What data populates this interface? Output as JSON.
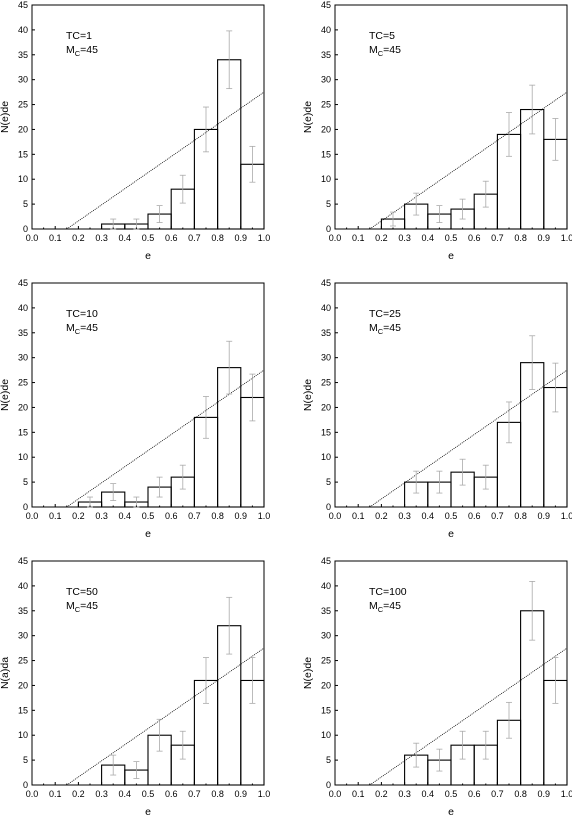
{
  "chart_data": [
    {
      "type": "bar",
      "x_bins": [
        [
          0.3,
          0.4
        ],
        [
          0.4,
          0.5
        ],
        [
          0.5,
          0.6
        ],
        [
          0.6,
          0.7
        ],
        [
          0.7,
          0.8
        ],
        [
          0.8,
          0.9
        ],
        [
          0.9,
          1.0
        ]
      ],
      "values": [
        1,
        1,
        3,
        8,
        20,
        34,
        13
      ],
      "errors": [
        1.0,
        1.0,
        1.7,
        2.8,
        4.5,
        5.8,
        3.6
      ],
      "fit_line": {
        "x": [
          0.15,
          1.0
        ],
        "y": [
          0,
          27.5
        ]
      },
      "annotation": {
        "line1": "TC=1",
        "prefix": "M",
        "sub": "C",
        "suffix": "=45"
      },
      "xlabel": "e",
      "ylabel": "N(e)de",
      "xlim": [
        0.0,
        1.0
      ],
      "ylim": [
        0,
        45
      ],
      "xticks": [
        "0.0",
        "0.1",
        "0.2",
        "0.3",
        "0.4",
        "0.5",
        "0.6",
        "0.7",
        "0.8",
        "0.9",
        "1.0"
      ],
      "yticks": [
        "0",
        "5",
        "10",
        "15",
        "20",
        "25",
        "30",
        "35",
        "40",
        "45"
      ],
      "grid": false
    },
    {
      "type": "bar",
      "x_bins": [
        [
          0.2,
          0.3
        ],
        [
          0.3,
          0.4
        ],
        [
          0.4,
          0.5
        ],
        [
          0.5,
          0.6
        ],
        [
          0.6,
          0.7
        ],
        [
          0.7,
          0.8
        ],
        [
          0.8,
          0.9
        ],
        [
          0.9,
          1.0
        ]
      ],
      "values": [
        2,
        5,
        3,
        4,
        7,
        19,
        24,
        18
      ],
      "errors": [
        1.4,
        2.2,
        1.7,
        2.0,
        2.6,
        4.4,
        4.9,
        4.2
      ],
      "fit_line": {
        "x": [
          0.15,
          1.0
        ],
        "y": [
          0,
          27.5
        ]
      },
      "annotation": {
        "line1": "TC=5",
        "prefix": "M",
        "sub": "C",
        "suffix": "=45"
      },
      "xlabel": "e",
      "ylabel": "N(e)de",
      "xlim": [
        0.0,
        1.0
      ],
      "ylim": [
        0,
        45
      ],
      "xticks": [
        "0.0",
        "0.1",
        "0.2",
        "0.3",
        "0.4",
        "0.5",
        "0.6",
        "0.7",
        "0.8",
        "0.9",
        "1.0"
      ],
      "yticks": [
        "0",
        "5",
        "10",
        "15",
        "20",
        "25",
        "30",
        "35",
        "40",
        "45"
      ],
      "grid": false
    },
    {
      "type": "bar",
      "x_bins": [
        [
          0.2,
          0.3
        ],
        [
          0.3,
          0.4
        ],
        [
          0.4,
          0.5
        ],
        [
          0.5,
          0.6
        ],
        [
          0.6,
          0.7
        ],
        [
          0.7,
          0.8
        ],
        [
          0.8,
          0.9
        ],
        [
          0.9,
          1.0
        ]
      ],
      "values": [
        1,
        3,
        1,
        4,
        6,
        18,
        28,
        22
      ],
      "errors": [
        1.0,
        1.7,
        1.0,
        2.0,
        2.4,
        4.2,
        5.3,
        4.7
      ],
      "fit_line": {
        "x": [
          0.15,
          1.0
        ],
        "y": [
          0,
          27.5
        ]
      },
      "annotation": {
        "line1": "TC=10",
        "prefix": "M",
        "sub": "C",
        "suffix": "=45"
      },
      "xlabel": "e",
      "ylabel": "N(e)de",
      "xlim": [
        0.0,
        1.0
      ],
      "ylim": [
        0,
        45
      ],
      "xticks": [
        "0.0",
        "0.1",
        "0.2",
        "0.3",
        "0.4",
        "0.5",
        "0.6",
        "0.7",
        "0.8",
        "0.9",
        "1.0"
      ],
      "yticks": [
        "0",
        "5",
        "10",
        "15",
        "20",
        "25",
        "30",
        "35",
        "40",
        "45"
      ],
      "grid": false
    },
    {
      "type": "bar",
      "x_bins": [
        [
          0.3,
          0.4
        ],
        [
          0.4,
          0.5
        ],
        [
          0.5,
          0.6
        ],
        [
          0.6,
          0.7
        ],
        [
          0.7,
          0.8
        ],
        [
          0.8,
          0.9
        ],
        [
          0.9,
          1.0
        ]
      ],
      "values": [
        5,
        5,
        7,
        6,
        17,
        29,
        24
      ],
      "errors": [
        2.2,
        2.2,
        2.6,
        2.4,
        4.1,
        5.4,
        4.9
      ],
      "fit_line": {
        "x": [
          0.15,
          1.0
        ],
        "y": [
          0,
          27.5
        ]
      },
      "annotation": {
        "line1": "TC=25",
        "prefix": "M",
        "sub": "C",
        "suffix": "=45"
      },
      "xlabel": "e",
      "ylabel": "N(e)de",
      "xlim": [
        0.0,
        1.0
      ],
      "ylim": [
        0,
        45
      ],
      "xticks": [
        "0.0",
        "0.1",
        "0.2",
        "0.3",
        "0.4",
        "0.5",
        "0.6",
        "0.7",
        "0.8",
        "0.9",
        "1.0"
      ],
      "yticks": [
        "0",
        "5",
        "10",
        "15",
        "20",
        "25",
        "30",
        "35",
        "40",
        "45"
      ],
      "grid": false
    },
    {
      "type": "bar",
      "x_bins": [
        [
          0.3,
          0.4
        ],
        [
          0.4,
          0.5
        ],
        [
          0.5,
          0.6
        ],
        [
          0.6,
          0.7
        ],
        [
          0.7,
          0.8
        ],
        [
          0.8,
          0.9
        ],
        [
          0.9,
          1.0
        ]
      ],
      "values": [
        4,
        3,
        10,
        8,
        21,
        32,
        21
      ],
      "errors": [
        2.0,
        1.7,
        3.2,
        2.8,
        4.6,
        5.7,
        4.6
      ],
      "fit_line": {
        "x": [
          0.15,
          1.0
        ],
        "y": [
          0,
          27.5
        ]
      },
      "annotation": {
        "line1": "TC=50",
        "prefix": "M",
        "sub": "C",
        "suffix": "=45"
      },
      "xlabel": "e",
      "ylabel": "N(a)da",
      "xlim": [
        0.0,
        1.0
      ],
      "ylim": [
        0,
        45
      ],
      "xticks": [
        "0.0",
        "0.1",
        "0.2",
        "0.3",
        "0.4",
        "0.5",
        "0.6",
        "0.7",
        "0.8",
        "0.9",
        "1.0"
      ],
      "yticks": [
        "0",
        "5",
        "10",
        "15",
        "20",
        "25",
        "30",
        "35",
        "40",
        "45"
      ],
      "grid": false
    },
    {
      "type": "bar",
      "x_bins": [
        [
          0.3,
          0.4
        ],
        [
          0.4,
          0.5
        ],
        [
          0.5,
          0.6
        ],
        [
          0.6,
          0.7
        ],
        [
          0.7,
          0.8
        ],
        [
          0.8,
          0.9
        ],
        [
          0.9,
          1.0
        ]
      ],
      "values": [
        6,
        5,
        8,
        8,
        13,
        35,
        21
      ],
      "errors": [
        2.4,
        2.2,
        2.8,
        2.8,
        3.6,
        5.9,
        4.6
      ],
      "fit_line": {
        "x": [
          0.15,
          1.0
        ],
        "y": [
          0,
          27.5
        ]
      },
      "annotation": {
        "line1": "TC=100",
        "prefix": "M",
        "sub": "C",
        "suffix": "=45"
      },
      "xlabel": "e",
      "ylabel": "N(e)de",
      "xlim": [
        0.0,
        1.0
      ],
      "ylim": [
        0,
        45
      ],
      "xticks": [
        "0.0",
        "0.1",
        "0.2",
        "0.3",
        "0.4",
        "0.5",
        "0.6",
        "0.7",
        "0.8",
        "0.9",
        "1.0"
      ],
      "yticks": [
        "0",
        "5",
        "10",
        "15",
        "20",
        "25",
        "30",
        "35",
        "40",
        "45"
      ],
      "grid": false
    }
  ]
}
